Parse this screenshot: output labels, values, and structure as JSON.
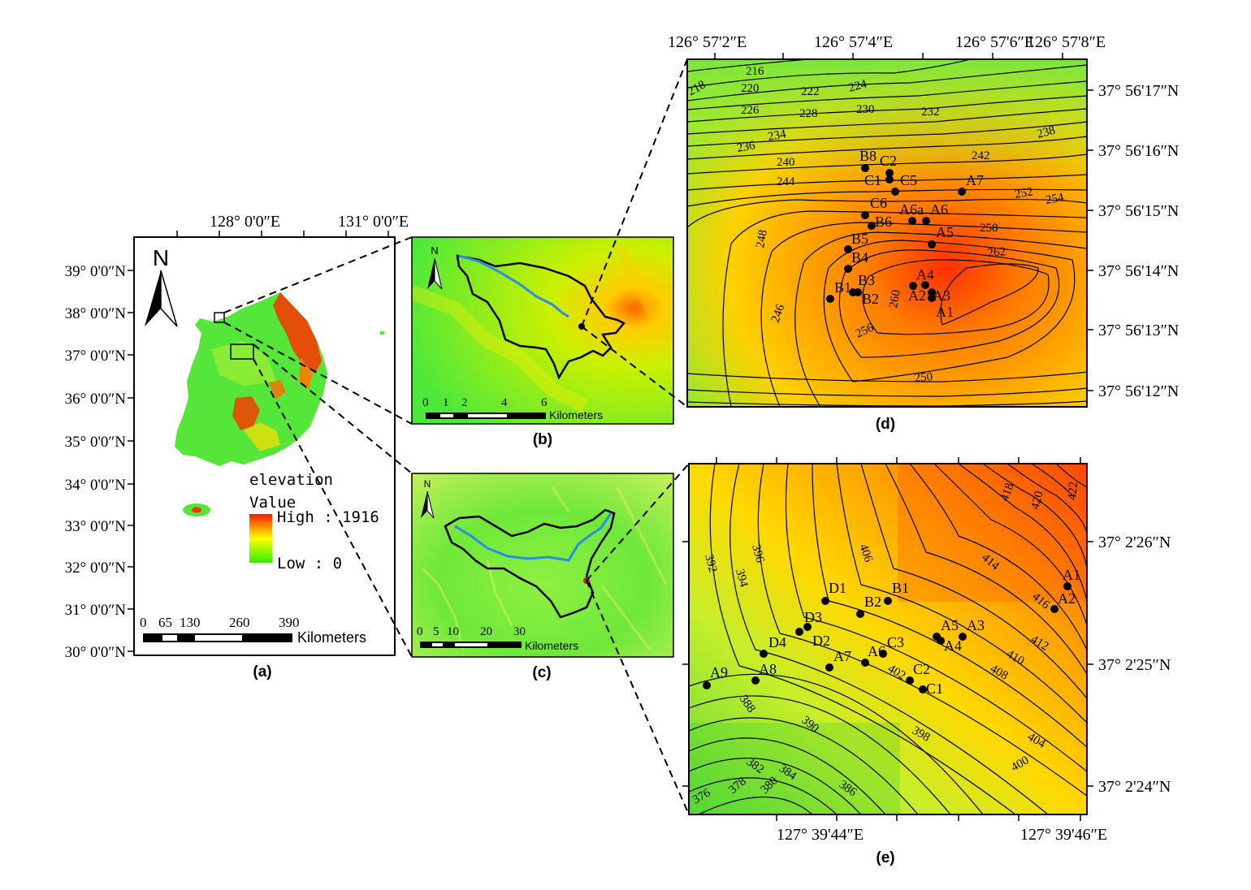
{
  "colors": {
    "frame": "#000000",
    "river": "#2a8fe0",
    "high": "#ff1a00",
    "mid": "#ffff00",
    "low": "#33ee00"
  },
  "panel_a": {
    "caption": "(a)",
    "north_label": "N",
    "lon_labels": [
      "128°  0'0″E",
      "131°  0'0″E"
    ],
    "lat_labels": [
      "39°  0'0″N",
      "38°  0'0″N",
      "37°  0'0″N",
      "36°  0'0″N",
      "35°  0'0″N",
      "34°  0'0″N",
      "33°  0'0″N",
      "32°  0'0″N",
      "31°  0'0″N",
      "30°  0'0″N"
    ],
    "legend": {
      "title": "elevation",
      "subtitle": "Value",
      "high": "High : 1916",
      "low": "Low : 0"
    },
    "scale_ticks": [
      "0",
      "65",
      "130",
      "260",
      "390"
    ],
    "scale_unit": "Kilometers"
  },
  "panel_b": {
    "caption": "(b)",
    "north_label": "N",
    "scale_ticks": [
      "0",
      "1",
      "2",
      "4",
      "6"
    ],
    "scale_unit": "Kilometers"
  },
  "panel_c": {
    "caption": "(c)",
    "north_label": "N",
    "scale_ticks": [
      "0",
      "5",
      "10",
      "20",
      "30"
    ],
    "scale_unit": "Kilometers"
  },
  "panel_d": {
    "caption": "(d)",
    "lon_labels": [
      "126°  57'2″E",
      "126°  57'4″E",
      "126°  57'6″E",
      "126°  57'8″E"
    ],
    "lat_labels": [
      "37°  56'17″N",
      "37°  56'16″N",
      "37°  56'15″N",
      "37°  56'14″N",
      "37°  56'13″N",
      "37°  56'12″N"
    ],
    "contour_labels": [
      "216",
      "218",
      "220",
      "222",
      "224",
      "226",
      "228",
      "230",
      "232",
      "234",
      "236",
      "238",
      "240",
      "242",
      "244",
      "246",
      "248",
      "250",
      "252",
      "254",
      "256",
      "258",
      "260",
      "262"
    ],
    "points": [
      "B8",
      "C2",
      "C1",
      "C5",
      "A7",
      "C6",
      "A6a",
      "A6",
      "B6",
      "A5",
      "B5",
      "B4",
      "A4",
      "B3",
      "A2",
      "A3",
      "B1",
      "B2",
      "A1"
    ]
  },
  "panel_e": {
    "caption": "(e)",
    "lon_labels": [
      "127°  39'44″E",
      "127°  39'46″E"
    ],
    "lat_labels": [
      "37°  2'26″N",
      "37°  2'25″N",
      "37°  2'24″N"
    ],
    "contour_labels": [
      "376",
      "378",
      "380",
      "382",
      "384",
      "386",
      "388",
      "390",
      "392",
      "394",
      "396",
      "398",
      "400",
      "402",
      "404",
      "406",
      "408",
      "410",
      "412",
      "414",
      "416",
      "418",
      "420",
      "422"
    ],
    "points": [
      "A1",
      "A2",
      "B1",
      "D1",
      "B2",
      "A5",
      "A3",
      "A4",
      "D3",
      "D2",
      "C3",
      "D4",
      "A6",
      "A7",
      "C2",
      "C1",
      "A8",
      "A9"
    ]
  }
}
